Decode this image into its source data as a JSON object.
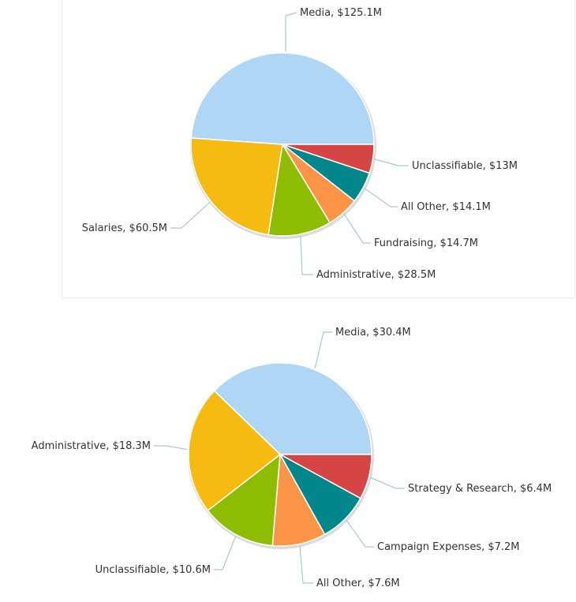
{
  "chart_data": [
    {
      "type": "pie",
      "title": "",
      "slices": [
        {
          "label": "Media, $125.1M",
          "value": 125.1,
          "color": "#b0d6f6"
        },
        {
          "label": "Unclassifiable, $13M",
          "value": 13.0,
          "color": "#d64545"
        },
        {
          "label": "All Other, $14.1M",
          "value": 14.1,
          "color": "#00868b"
        },
        {
          "label": "Fundraising, $14.7M",
          "value": 14.7,
          "color": "#fb9447"
        },
        {
          "label": "Administrative, $28.5M",
          "value": 28.5,
          "color": "#8ebc00"
        },
        {
          "label": "Salaries, $60.5M",
          "value": 60.5,
          "color": "#f5bb10"
        }
      ]
    },
    {
      "type": "pie",
      "title": "",
      "slices": [
        {
          "label": "Media, $30.4M",
          "value": 30.4,
          "color": "#b0d6f6"
        },
        {
          "label": "Strategy & Research, $6.4M",
          "value": 6.4,
          "color": "#d64545"
        },
        {
          "label": "Campaign Expenses, $7.2M",
          "value": 7.2,
          "color": "#00868b"
        },
        {
          "label": "All Other, $7.6M",
          "value": 7.6,
          "color": "#fb9447"
        },
        {
          "label": "Unclassifiable, $10.6M",
          "value": 10.6,
          "color": "#8ebc00"
        },
        {
          "label": "Administrative, $18.3M",
          "value": 18.3,
          "color": "#f5bb10"
        }
      ]
    }
  ]
}
